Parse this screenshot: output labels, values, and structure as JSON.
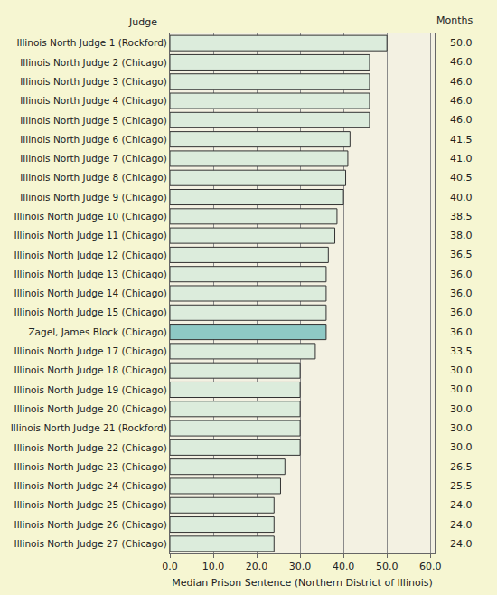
{
  "chart_data": {
    "type": "bar",
    "orientation": "horizontal",
    "ylabel": "Judge",
    "value_labels_title": "Months",
    "xlabel": "Median Prison Sentence (Northern District of Illinois)",
    "categories": [
      "Illinois North Judge 1 (Rockford)",
      "Illinois North Judge 2 (Chicago)",
      "Illinois North Judge 3 (Chicago)",
      "Illinois North Judge 4 (Chicago)",
      "Illinois North Judge 5 (Chicago)",
      "Illinois North Judge 6 (Chicago)",
      "Illinois North Judge 7 (Chicago)",
      "Illinois North Judge 8 (Chicago)",
      "Illinois North Judge 9 (Chicago)",
      "Illinois North Judge 10 (Chicago)",
      "Illinois North Judge 11 (Chicago)",
      "Illinois North Judge 12 (Chicago)",
      "Illinois North Judge 13 (Chicago)",
      "Illinois North Judge 14 (Chicago)",
      "Illinois North Judge 15 (Chicago)",
      "Zagel, James Block (Chicago)",
      "Illinois North Judge 17 (Chicago)",
      "Illinois North Judge 18 (Chicago)",
      "Illinois North Judge 19 (Chicago)",
      "Illinois North Judge 20 (Chicago)",
      "Illinois North Judge 21 (Rockford)",
      "Illinois North Judge 22 (Chicago)",
      "Illinois North Judge 23 (Chicago)",
      "Illinois North Judge 24 (Chicago)",
      "Illinois North Judge 25 (Chicago)",
      "Illinois North Judge 26 (Chicago)",
      "Illinois North Judge 27 (Chicago)"
    ],
    "values": [
      50,
      46,
      46,
      46,
      46,
      41.5,
      41,
      40.5,
      40,
      38.5,
      38,
      36.5,
      36,
      36,
      36,
      36,
      33.5,
      30,
      30,
      30,
      30,
      30,
      26.5,
      25.5,
      24,
      24,
      24
    ],
    "value_labels": [
      "50.0",
      "46.0",
      "46.0",
      "46.0",
      "46.0",
      "41.5",
      "41.0",
      "40.5",
      "40.0",
      "38.5",
      "38.0",
      "36.5",
      "36.0",
      "36.0",
      "36.0",
      "36.0",
      "33.5",
      "30.0",
      "30.0",
      "30.0",
      "30.0",
      "30.0",
      "26.5",
      "25.5",
      "24.0",
      "24.0",
      "24.0"
    ],
    "data_labels": true,
    "colors": [
      "#dcecdc",
      "#dcecdc",
      "#dcecdc",
      "#dcecdc",
      "#dcecdc",
      "#dcecdc",
      "#dcecdc",
      "#dcecdc",
      "#dcecdc",
      "#dcecdc",
      "#dcecdc",
      "#dcecdc",
      "#dcecdc",
      "#dcecdc",
      "#dcecdc",
      "#8ec9c5",
      "#dcecdc",
      "#dcecdc",
      "#dcecdc",
      "#dcecdc",
      "#dcecdc",
      "#dcecdc",
      "#dcecdc",
      "#dcecdc",
      "#dcecdc",
      "#dcecdc",
      "#dcecdc"
    ],
    "xlim": [
      0,
      61
    ],
    "xticks": [
      {
        "value": 0,
        "label": "0.0"
      },
      {
        "value": 10,
        "label": "10.0"
      },
      {
        "value": 20,
        "label": "20.0"
      },
      {
        "value": 30,
        "label": "30.0"
      },
      {
        "value": 40,
        "label": "40.0"
      },
      {
        "value": 50,
        "label": "50.0"
      },
      {
        "value": 60,
        "label": "60.0"
      }
    ],
    "grid": true
  }
}
